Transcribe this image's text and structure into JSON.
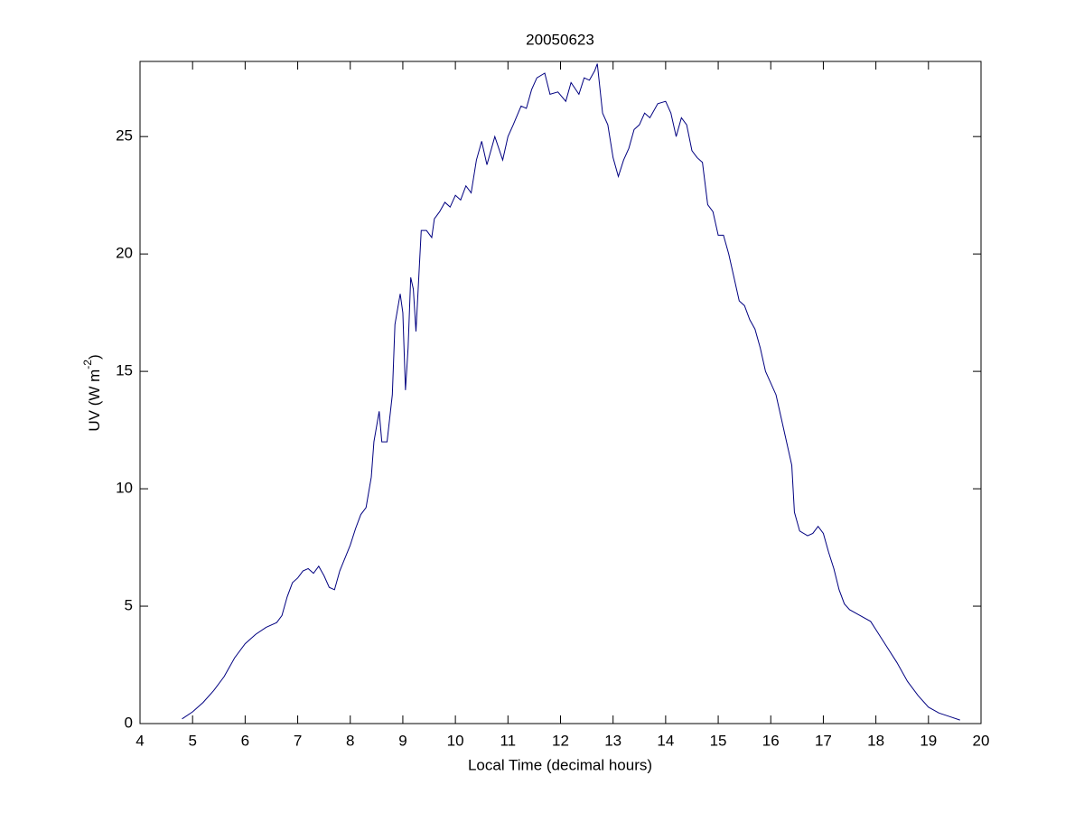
{
  "chart_data": {
    "type": "line",
    "title": "20050623",
    "xlabel": "Local Time (decimal hours)",
    "ylabel": [
      "UV (W m",
      "-2",
      ")"
    ],
    "xlim": [
      4,
      20
    ],
    "xticks": [
      4,
      5,
      6,
      7,
      8,
      9,
      10,
      11,
      12,
      13,
      14,
      15,
      16,
      17,
      18,
      19,
      20
    ],
    "ylim": [
      0,
      28.2
    ],
    "yticks": [
      0,
      5,
      10,
      15,
      20,
      25
    ],
    "grid": false,
    "x": [
      4.8,
      5.0,
      5.2,
      5.4,
      5.6,
      5.8,
      6.0,
      6.2,
      6.4,
      6.6,
      6.7,
      6.8,
      6.9,
      7.0,
      7.1,
      7.2,
      7.3,
      7.4,
      7.5,
      7.6,
      7.7,
      7.8,
      8.0,
      8.1,
      8.2,
      8.3,
      8.4,
      8.45,
      8.55,
      8.6,
      8.7,
      8.8,
      8.85,
      8.95,
      9.0,
      9.05,
      9.1,
      9.15,
      9.2,
      9.25,
      9.35,
      9.45,
      9.55,
      9.6,
      9.7,
      9.8,
      9.9,
      10.0,
      10.1,
      10.2,
      10.3,
      10.4,
      10.5,
      10.6,
      10.75,
      10.9,
      11.0,
      11.1,
      11.25,
      11.35,
      11.45,
      11.55,
      11.7,
      11.8,
      11.95,
      12.1,
      12.2,
      12.35,
      12.45,
      12.55,
      12.65,
      12.7,
      12.8,
      12.9,
      13.0,
      13.1,
      13.2,
      13.3,
      13.4,
      13.5,
      13.6,
      13.7,
      13.85,
      14.0,
      14.1,
      14.2,
      14.3,
      14.4,
      14.5,
      14.6,
      14.7,
      14.8,
      14.9,
      15.0,
      15.1,
      15.2,
      15.3,
      15.4,
      15.5,
      15.6,
      15.7,
      15.8,
      15.9,
      16.0,
      16.1,
      16.2,
      16.3,
      16.4,
      16.45,
      16.55,
      16.7,
      16.8,
      16.9,
      17.0,
      17.1,
      17.2,
      17.3,
      17.4,
      17.5,
      17.7,
      17.9,
      18.0,
      18.2,
      18.4,
      18.6,
      18.8,
      19.0,
      19.2,
      19.4,
      19.6
    ],
    "series": [
      {
        "color": "#000080",
        "values": [
          0.2,
          0.5,
          0.9,
          1.4,
          2.0,
          2.8,
          3.4,
          3.8,
          4.1,
          4.3,
          4.6,
          5.4,
          6.0,
          6.2,
          6.5,
          6.6,
          6.4,
          6.7,
          6.3,
          5.8,
          5.7,
          6.5,
          7.6,
          8.3,
          8.9,
          9.2,
          10.5,
          12.0,
          13.3,
          12.0,
          12.0,
          14.0,
          17.0,
          18.3,
          17.5,
          14.2,
          16.0,
          19.0,
          18.5,
          16.7,
          21.0,
          21.0,
          20.7,
          21.5,
          21.8,
          22.2,
          22.0,
          22.5,
          22.3,
          22.9,
          22.6,
          24.0,
          24.8,
          23.8,
          25.0,
          24.0,
          25.0,
          25.5,
          26.3,
          26.2,
          27.0,
          27.5,
          27.7,
          26.8,
          26.9,
          26.5,
          27.3,
          26.8,
          27.5,
          27.4,
          27.8,
          28.1,
          26.0,
          25.5,
          24.1,
          23.3,
          24.0,
          24.5,
          25.3,
          25.5,
          26.0,
          25.8,
          26.4,
          26.5,
          26.0,
          25.0,
          25.8,
          25.5,
          24.4,
          24.1,
          23.9,
          22.1,
          21.8,
          20.8,
          20.8,
          20.0,
          19.0,
          18.0,
          17.8,
          17.2,
          16.8,
          16.0,
          15.0,
          14.5,
          14.0,
          13.0,
          12.0,
          11.0,
          9.0,
          8.2,
          8.0,
          8.1,
          8.4,
          8.1,
          7.3,
          6.6,
          5.7,
          5.1,
          4.85,
          4.6,
          4.35,
          4.0,
          3.3,
          2.6,
          1.8,
          1.2,
          0.7,
          0.45,
          0.3,
          0.15
        ]
      }
    ]
  }
}
